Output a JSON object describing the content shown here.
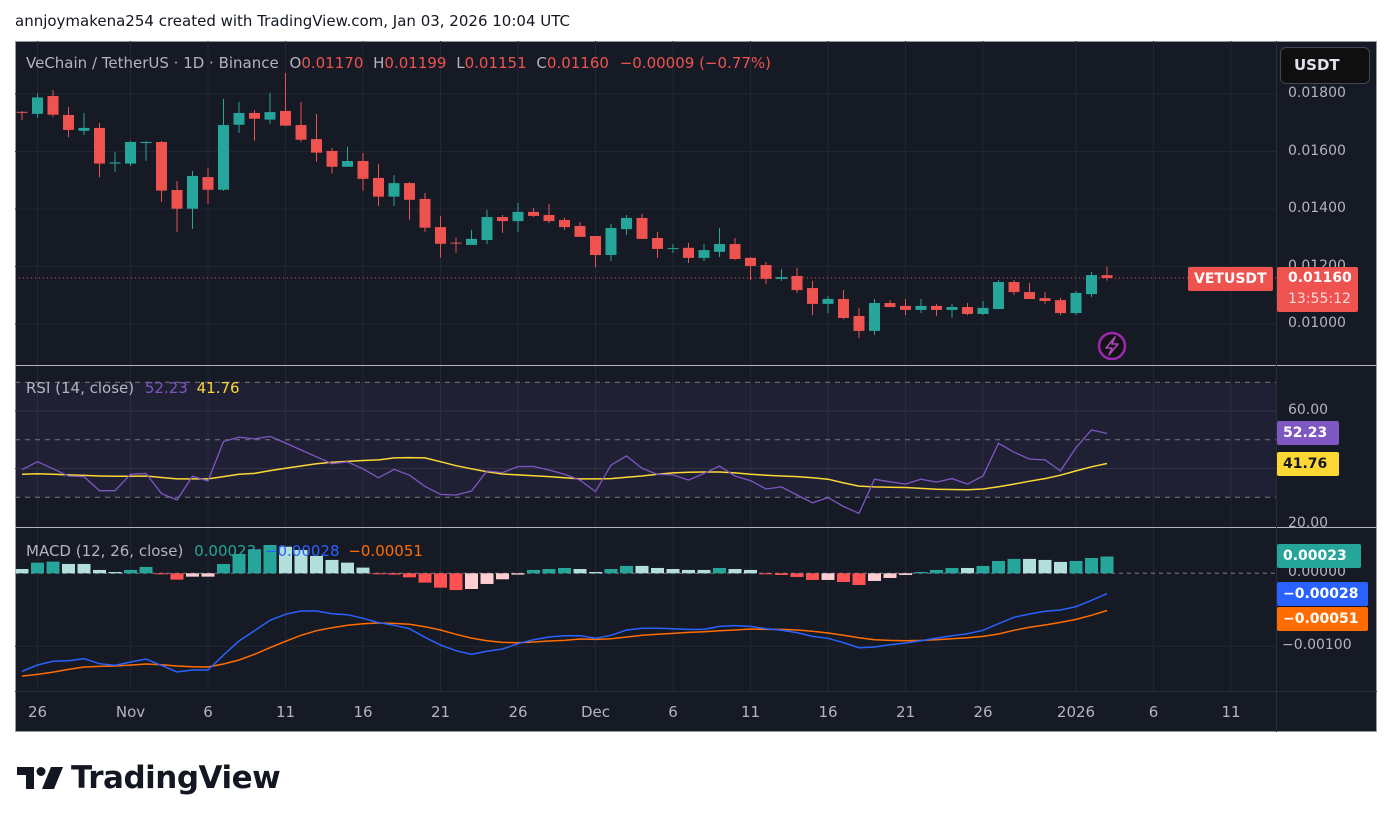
{
  "caption": "annjoymakena254 created with TradingView.com, Jan 03, 2026 10:04 UTC",
  "header": {
    "symbol": "VeChain / TetherUS · 1D · Binance",
    "o_label": "O",
    "o_value": "0.01170",
    "h_label": "H",
    "h_value": "0.01199",
    "l_label": "L",
    "l_value": "0.01151",
    "c_label": "C",
    "c_value": "0.01160",
    "change": "−0.00009 (−0.77%)"
  },
  "currency_button": "USDT",
  "price_axis": [
    "0.01800",
    "0.01600",
    "0.01400",
    "0.01200",
    "0.01000"
  ],
  "symbol_badge": "VETUSDT",
  "price_badge": {
    "price": "0.01160",
    "countdown": "13:55:12"
  },
  "rsi": {
    "legend": "RSI (14, close)",
    "value": "52.23",
    "ma_value": "41.76",
    "axis": [
      "60.00",
      "20.00"
    ]
  },
  "macd": {
    "legend": "MACD (12, 26, close)",
    "hist_value": "0.00023",
    "macd_value": "−0.00028",
    "signal_value": "−0.00051",
    "axis": [
      "0.00000",
      "−0.00100"
    ]
  },
  "time_axis": [
    {
      "label": "26",
      "index": 1
    },
    {
      "label": "Nov",
      "index": 7
    },
    {
      "label": "6",
      "index": 12
    },
    {
      "label": "11",
      "index": 17
    },
    {
      "label": "16",
      "index": 22
    },
    {
      "label": "21",
      "index": 27
    },
    {
      "label": "26",
      "index": 32
    },
    {
      "label": "Dec",
      "index": 37
    },
    {
      "label": "6",
      "index": 42
    },
    {
      "label": "11",
      "index": 47
    },
    {
      "label": "16",
      "index": 52
    },
    {
      "label": "21",
      "index": 57
    },
    {
      "label": "26",
      "index": 62
    },
    {
      "label": "2026",
      "index": 68
    },
    {
      "label": "6",
      "index": 73
    },
    {
      "label": "11",
      "index": 78
    }
  ],
  "brand": "TradingView",
  "colors": {
    "up": "#26a69a",
    "down": "#ef5350",
    "rsi": "#7e57c2",
    "rsi_ma": "#fdd835",
    "macd": "#2962ff",
    "signal": "#ff6d00",
    "hist_up_strong": "#26a69a",
    "hist_up_weak": "#b2dfdb",
    "hist_down_strong": "#ff5252",
    "hist_down_weak": "#ffcdd2"
  },
  "chart_data": {
    "type": "candlestick",
    "title": "VeChain / TetherUS · 1D · Binance",
    "start_date": "2025-10-25",
    "interval": "1D",
    "ylim": [
      0.009,
      0.0187
    ],
    "current_price": 0.0116,
    "ohlc": [
      [
        0.01738,
        0.01741,
        0.0171,
        0.01737
      ],
      [
        0.01731,
        0.01802,
        0.01718,
        0.01788
      ],
      [
        0.01793,
        0.01814,
        0.01721,
        0.01728
      ],
      [
        0.01727,
        0.01755,
        0.0165,
        0.01675
      ],
      [
        0.01672,
        0.01734,
        0.01657,
        0.01682
      ],
      [
        0.01682,
        0.01699,
        0.01511,
        0.01558
      ],
      [
        0.01558,
        0.01598,
        0.0153,
        0.01562
      ],
      [
        0.01558,
        0.01637,
        0.0155,
        0.01633
      ],
      [
        0.0163,
        0.01637,
        0.01568,
        0.01633
      ],
      [
        0.01633,
        0.01637,
        0.01425,
        0.01464
      ],
      [
        0.01466,
        0.01497,
        0.01321,
        0.01401
      ],
      [
        0.01401,
        0.01532,
        0.01331,
        0.01515
      ],
      [
        0.01511,
        0.01543,
        0.01418,
        0.01467
      ],
      [
        0.01467,
        0.01783,
        0.01463,
        0.01692
      ],
      [
        0.01693,
        0.01772,
        0.01665,
        0.01734
      ],
      [
        0.01734,
        0.01744,
        0.01638,
        0.01714
      ],
      [
        0.01711,
        0.01803,
        0.01697,
        0.01737
      ],
      [
        0.01741,
        0.01873,
        0.01689,
        0.0169
      ],
      [
        0.01692,
        0.01772,
        0.01634,
        0.01641
      ],
      [
        0.01643,
        0.0173,
        0.01565,
        0.01596
      ],
      [
        0.01602,
        0.01612,
        0.01523,
        0.01547
      ],
      [
        0.01547,
        0.01616,
        0.01547,
        0.01567
      ],
      [
        0.01567,
        0.01595,
        0.01464,
        0.01505
      ],
      [
        0.01508,
        0.01557,
        0.01411,
        0.01443
      ],
      [
        0.01443,
        0.01518,
        0.01411,
        0.0149
      ],
      [
        0.0149,
        0.01494,
        0.01363,
        0.01432
      ],
      [
        0.01435,
        0.01456,
        0.01321,
        0.01335
      ],
      [
        0.01337,
        0.01376,
        0.01231,
        0.01279
      ],
      [
        0.01283,
        0.013,
        0.01248,
        0.01281
      ],
      [
        0.01275,
        0.01328,
        0.01275,
        0.01296
      ],
      [
        0.01292,
        0.01397,
        0.01278,
        0.01372
      ],
      [
        0.01372,
        0.01379,
        0.01317,
        0.01358
      ],
      [
        0.01358,
        0.01421,
        0.0132,
        0.0139
      ],
      [
        0.0139,
        0.01403,
        0.01372,
        0.01376
      ],
      [
        0.01379,
        0.01417,
        0.01351,
        0.01358
      ],
      [
        0.01362,
        0.01369,
        0.01327,
        0.01337
      ],
      [
        0.01341,
        0.01355,
        0.01303,
        0.01303
      ],
      [
        0.01306,
        0.01306,
        0.01198,
        0.0124
      ],
      [
        0.0124,
        0.01348,
        0.01219,
        0.01334
      ],
      [
        0.0133,
        0.01379,
        0.0131,
        0.01369
      ],
      [
        0.01369,
        0.01383,
        0.01296,
        0.01296
      ],
      [
        0.01299,
        0.0132,
        0.0123,
        0.01261
      ],
      [
        0.01263,
        0.01278,
        0.01247,
        0.01264
      ],
      [
        0.01265,
        0.01282,
        0.01212,
        0.0123
      ],
      [
        0.0123,
        0.01278,
        0.01219,
        0.01257
      ],
      [
        0.01251,
        0.01334,
        0.01233,
        0.01278
      ],
      [
        0.01278,
        0.01299,
        0.01223,
        0.01226
      ],
      [
        0.0123,
        0.01233,
        0.01153,
        0.01202
      ],
      [
        0.01205,
        0.01216,
        0.01139,
        0.01157
      ],
      [
        0.01157,
        0.01191,
        0.0115,
        0.01163
      ],
      [
        0.01167,
        0.01195,
        0.01108,
        0.01118
      ],
      [
        0.01125,
        0.0115,
        0.01031,
        0.0107
      ],
      [
        0.0107,
        0.01097,
        0.01038,
        0.01087
      ],
      [
        0.01087,
        0.01118,
        0.01017,
        0.01021
      ],
      [
        0.01028,
        0.01056,
        0.00951,
        0.00976
      ],
      [
        0.00976,
        0.01087,
        0.00962,
        0.01073
      ],
      [
        0.01073,
        0.01083,
        0.01059,
        0.01059
      ],
      [
        0.01063,
        0.01087,
        0.01031,
        0.01049
      ],
      [
        0.01049,
        0.01087,
        0.01038,
        0.01063
      ],
      [
        0.01063,
        0.0107,
        0.01028,
        0.01049
      ],
      [
        0.01049,
        0.0107,
        0.01021,
        0.01059
      ],
      [
        0.01059,
        0.01073,
        0.01031,
        0.01035
      ],
      [
        0.01035,
        0.0108,
        0.01031,
        0.01056
      ],
      [
        0.01052,
        0.01153,
        0.01052,
        0.01146
      ],
      [
        0.01146,
        0.01153,
        0.01101,
        0.01111
      ],
      [
        0.01111,
        0.01143,
        0.01087,
        0.01087
      ],
      [
        0.0109,
        0.01111,
        0.0107,
        0.0108
      ],
      [
        0.01083,
        0.0109,
        0.01031,
        0.01038
      ],
      [
        0.01038,
        0.01115,
        0.01031,
        0.01108
      ],
      [
        0.01104,
        0.01181,
        0.01094,
        0.0117
      ],
      [
        0.0117,
        0.01199,
        0.01151,
        0.0116
      ]
    ],
    "rsi": {
      "ylim": [
        16,
        87
      ],
      "bands": [
        70,
        50,
        30
      ],
      "rsi": [
        39.6,
        42.4,
        39.9,
        37.4,
        37.2,
        32.3,
        32.3,
        38.0,
        38.3,
        31.3,
        29.1,
        37.3,
        35.7,
        49.4,
        50.9,
        50.3,
        51.2,
        48.9,
        46.5,
        44.1,
        41.7,
        42.3,
        39.9,
        36.8,
        39.7,
        37.7,
        33.8,
        31.0,
        30.8,
        32.2,
        39.2,
        38.6,
        40.7,
        40.7,
        39.5,
        38.0,
        36.0,
        32.0,
        41.2,
        44.4,
        40.1,
        38.0,
        37.8,
        36.0,
        38.3,
        40.9,
        37.4,
        35.8,
        32.9,
        33.6,
        30.8,
        28.1,
        29.9,
        26.8,
        24.4,
        36.3,
        35.4,
        34.6,
        36.3,
        35.3,
        36.5,
        34.6,
        37.4,
        48.8,
        45.7,
        43.3,
        43.0,
        39.2,
        47.3,
        53.4,
        52.23
      ],
      "ma": [
        38.0,
        38.2,
        38.0,
        37.8,
        37.6,
        37.4,
        37.3,
        37.3,
        37.4,
        36.9,
        36.4,
        36.4,
        36.4,
        37.2,
        38.0,
        38.3,
        39.3,
        40.1,
        40.9,
        41.7,
        42.2,
        42.5,
        42.8,
        43.0,
        43.7,
        43.8,
        43.7,
        42.4,
        41.0,
        39.9,
        38.9,
        38.1,
        37.8,
        37.5,
        37.2,
        36.8,
        36.4,
        36.4,
        36.5,
        37.0,
        37.4,
        38.0,
        38.5,
        38.7,
        38.8,
        38.8,
        38.5,
        38.0,
        37.7,
        37.4,
        37.2,
        36.8,
        36.3,
        35.0,
        33.9,
        33.6,
        33.5,
        33.4,
        33.1,
        32.8,
        32.7,
        32.6,
        32.9,
        33.7,
        34.6,
        35.6,
        36.5,
        37.7,
        39.2,
        40.6,
        41.76
      ]
    },
    "macd": {
      "macd": [
        -0.001343,
        -0.001256,
        -0.001206,
        -0.001197,
        -0.00117,
        -0.001238,
        -0.001261,
        -0.001215,
        -0.001174,
        -0.001261,
        -0.001352,
        -0.001325,
        -0.001325,
        -0.00112,
        -0.000928,
        -0.000786,
        -0.000644,
        -0.000562,
        -0.000516,
        -0.000516,
        -0.000553,
        -0.000567,
        -0.000617,
        -0.000676,
        -0.000713,
        -0.000759,
        -0.000877,
        -0.000983,
        -0.00106,
        -0.001111,
        -0.001069,
        -0.001037,
        -0.000964,
        -0.000909,
        -0.000873,
        -0.000855,
        -0.000855,
        -0.000891,
        -0.00085,
        -0.000777,
        -0.000754,
        -0.000754,
        -0.000759,
        -0.000768,
        -0.000768,
        -0.000727,
        -0.000717,
        -0.000727,
        -0.000759,
        -0.000781,
        -0.000813,
        -0.000864,
        -0.000891,
        -0.000951,
        -0.001019,
        -0.00101,
        -0.000978,
        -0.000955,
        -0.000923,
        -0.000887,
        -0.000855,
        -0.000827,
        -0.000781,
        -0.00069,
        -0.000603,
        -0.000558,
        -0.000521,
        -0.000503,
        -0.000457,
        -0.00037,
        -0.00028
      ],
      "signal": [
        -0.001408,
        -0.001385,
        -0.001353,
        -0.001316,
        -0.001284,
        -0.001275,
        -0.00127,
        -0.001257,
        -0.001243,
        -0.001252,
        -0.00127,
        -0.00128,
        -0.001284,
        -0.001243,
        -0.001188,
        -0.00111,
        -0.001019,
        -0.000932,
        -0.00085,
        -0.000786,
        -0.000745,
        -0.000713,
        -0.00069,
        -0.000681,
        -0.000686,
        -0.000699,
        -0.000731,
        -0.000777,
        -0.000836,
        -0.000887,
        -0.000923,
        -0.000946,
        -0.000951,
        -0.000941,
        -0.000928,
        -0.000919,
        -0.0009,
        -0.000905,
        -0.000896,
        -0.000873,
        -0.00085,
        -0.000836,
        -0.000823,
        -0.000809,
        -0.0008,
        -0.000786,
        -0.000777,
        -0.000763,
        -0.000768,
        -0.000768,
        -0.000777,
        -0.000795,
        -0.000818,
        -0.00085,
        -0.000882,
        -0.000909,
        -0.000919,
        -0.000923,
        -0.000919,
        -0.000909,
        -0.000896,
        -0.000882,
        -0.000864,
        -0.000832,
        -0.000781,
        -0.00074,
        -0.000708,
        -0.000672,
        -0.000631,
        -0.000576,
        -0.00051
      ],
      "histogram": [
        5.9e-05,
        0.000146,
        0.00016,
        0.000128,
        0.000128,
        4.6e-05,
        1.8e-05,
        4.6e-05,
        8.7e-05,
        -5e-06,
        -8.7e-05,
        -4.6e-05,
        -4.6e-05,
        0.000128,
        0.000265,
        0.000329,
        0.000388,
        0.000365,
        0.00032,
        0.000238,
        0.000183,
        0.000146,
        7.8e-05,
        -1e-05,
        -1.8e-05,
        -5.5e-05,
        -0.000128,
        -0.000197,
        -0.000229,
        -0.000215,
        -0.000146,
        -8.2e-05,
        -1.8e-05,
        4.6e-05,
        5.9e-05,
        7.3e-05,
        5.9e-05,
        1.8e-05,
        5.9e-05,
        0.000101,
        0.000101,
        7.3e-05,
        5.9e-05,
        4.6e-05,
        4.6e-05,
        7.3e-05,
        5.9e-05,
        4.6e-05,
        -5e-06,
        -2.3e-05,
        -5e-05,
        -9.1e-05,
        -9.1e-05,
        -0.000119,
        -0.00016,
        -0.000105,
        -6.4e-05,
        -2.3e-05,
        1.8e-05,
        4.6e-05,
        7.3e-05,
        7.3e-05,
        0.000101,
        0.000169,
        0.000197,
        0.000197,
        0.000183,
        0.000156,
        0.000169,
        0.00021,
        0.00023
      ]
    }
  }
}
